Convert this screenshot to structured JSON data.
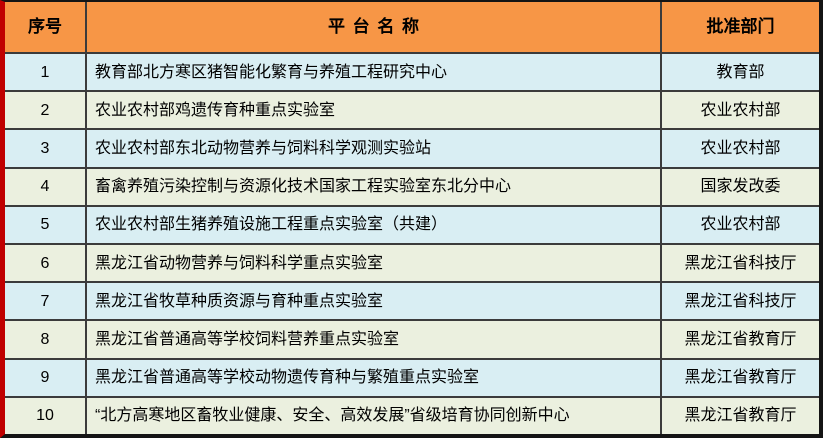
{
  "table": {
    "columns": [
      {
        "label": "序号"
      },
      {
        "label": "平台名称"
      },
      {
        "label": "批准部门"
      }
    ],
    "rows": [
      {
        "index": "1",
        "name": "教育部北方寒区猪智能化繁育与养殖工程研究中心",
        "dept": "教育部"
      },
      {
        "index": "2",
        "name": "农业农村部鸡遗传育种重点实验室",
        "dept": "农业农村部"
      },
      {
        "index": "3",
        "name": "农业农村部东北动物营养与饲料科学观测实验站",
        "dept": "农业农村部"
      },
      {
        "index": "4",
        "name": "畜禽养殖污染控制与资源化技术国家工程实验室东北分中心",
        "dept": "国家发改委"
      },
      {
        "index": "5",
        "name": "农业农村部生猪养殖设施工程重点实验室（共建）",
        "dept": "农业农村部"
      },
      {
        "index": "6",
        "name": "黑龙江省动物营养与饲料科学重点实验室",
        "dept": "黑龙江省科技厅"
      },
      {
        "index": "7",
        "name": "黑龙江省牧草种质资源与育种重点实验室",
        "dept": "黑龙江省科技厅"
      },
      {
        "index": "8",
        "name": "黑龙江省普通高等学校饲料营养重点实验室",
        "dept": "黑龙江省教育厅"
      },
      {
        "index": "9",
        "name": "黑龙江省普通高等学校动物遗传育种与繁殖重点实验室",
        "dept": "黑龙江省教育厅"
      },
      {
        "index": "10",
        "name": "“北方高寒地区畜牧业健康、安全、高效发展”省级培育协同创新中心",
        "dept": "黑龙江省教育厅"
      }
    ],
    "colors": {
      "header_bg": "#F79646",
      "row_blue": "#D9EEF3",
      "row_beige": "#EBF0DF",
      "inner_border": "#3B3B3B",
      "outer_border": "#141414",
      "left_border": "#C00000",
      "text": "#000000"
    }
  }
}
